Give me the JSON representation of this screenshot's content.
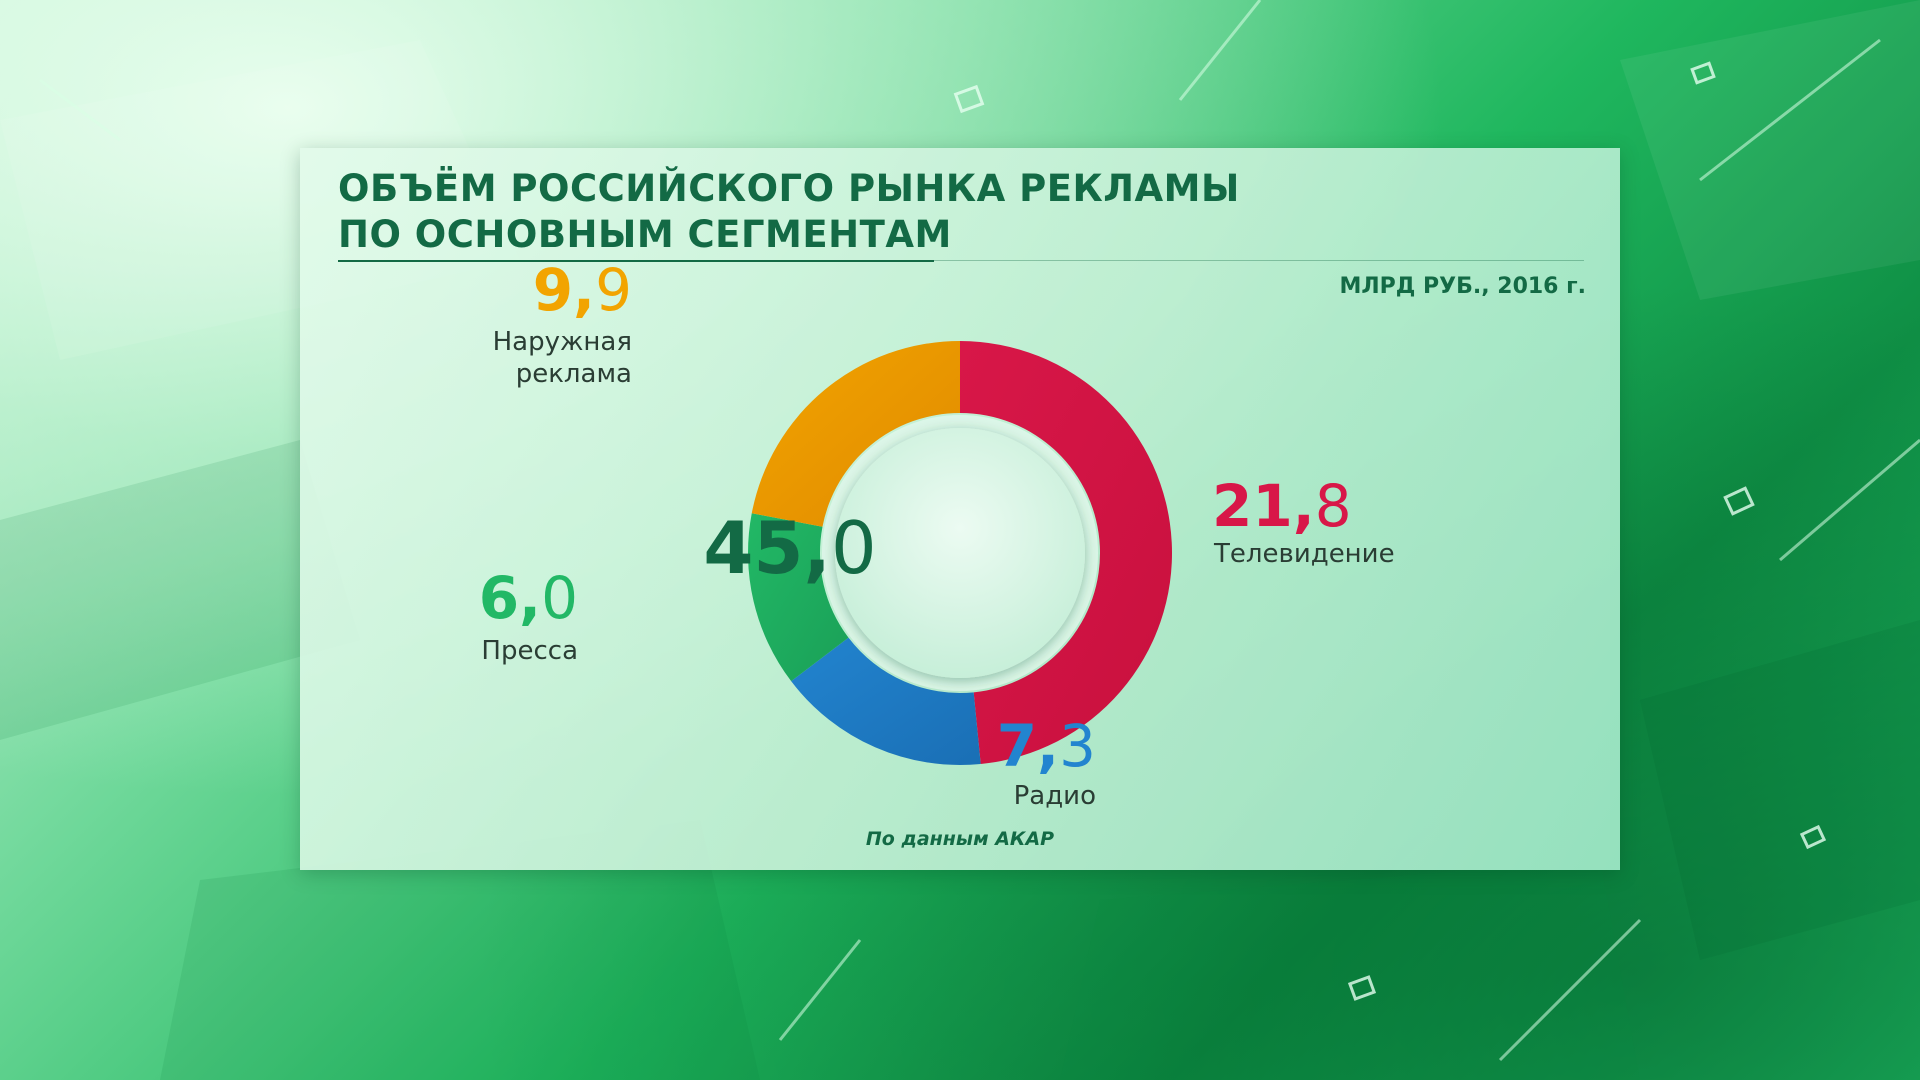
{
  "title_lines": [
    "ОБЪЁМ РОССИЙСКОГО РЫНКА РЕКЛАМЫ",
    "ПО ОСНОВНЫМ СЕГМЕНТАМ"
  ],
  "units": "МЛРД РУБ., 2016 г.",
  "source": "По данным АКАР",
  "colors": {
    "title": "#136a45",
    "tv": "#d81748",
    "radio": "#2284cf",
    "press": "#22b866",
    "outdoor": "#f2a400"
  },
  "chart_data": {
    "type": "pie",
    "style": "donut",
    "total": {
      "int": "45,",
      "dec": "0"
    },
    "segments": [
      {
        "key": "tv",
        "name": "Телевидение",
        "value": 21.8,
        "int": "21,",
        "dec": "8",
        "color": "#d81748",
        "color_dark": "#c8103e"
      },
      {
        "key": "radio",
        "name": "Радио",
        "value": 7.3,
        "int": "7,",
        "dec": "3",
        "color": "#2284cf",
        "color_dark": "#1a6fb5"
      },
      {
        "key": "press",
        "name": "Пресса",
        "value": 6.0,
        "int": "6,",
        "dec": "0",
        "color": "#22b866",
        "color_dark": "#1aa057"
      },
      {
        "key": "outdoor",
        "name": "Наружная реклама",
        "name_lines": [
          "Наружная",
          "реклама"
        ],
        "value": 9.9,
        "int": "9,",
        "dec": "9",
        "color": "#f2a400",
        "color_dark": "#e08a00"
      }
    ]
  }
}
